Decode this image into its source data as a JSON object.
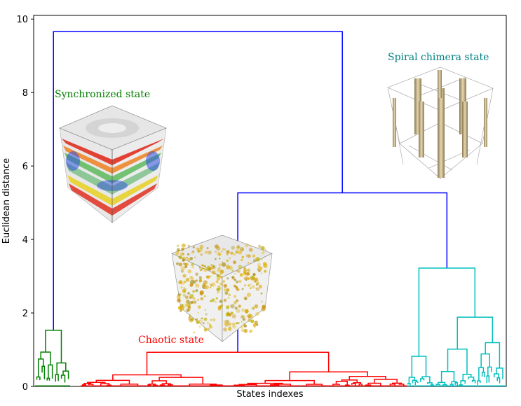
{
  "chart_data": {
    "type": "dendrogram",
    "xlabel": "States indexes",
    "ylabel": "Euclidean distance",
    "ylim": [
      0,
      10.1
    ],
    "yticks": [
      "0",
      "2",
      "4",
      "6",
      "8",
      "10"
    ],
    "grid": false,
    "colors": {
      "root": "#0000ff",
      "synchronized": "#008000",
      "chaotic": "#ff0000",
      "spiral": "#00bfbf",
      "axes": "#000000"
    },
    "clusters": [
      {
        "key": "synchronized",
        "name": "Synchronized state",
        "color": "#008000",
        "merge_height": 1.53
      },
      {
        "key": "chaotic",
        "name": "Chaotic state",
        "color": "#ff0000",
        "merge_height": 0.93
      },
      {
        "key": "spiral",
        "name": "Spiral chimera state",
        "color": "#00bfbf",
        "merge_height": 3.22
      }
    ],
    "merges": [
      {
        "between": [
          "chaotic",
          "spiral"
        ],
        "height": 5.27
      },
      {
        "between": [
          "synchronized",
          "chaotic+spiral"
        ],
        "height": 9.66
      }
    ]
  }
}
